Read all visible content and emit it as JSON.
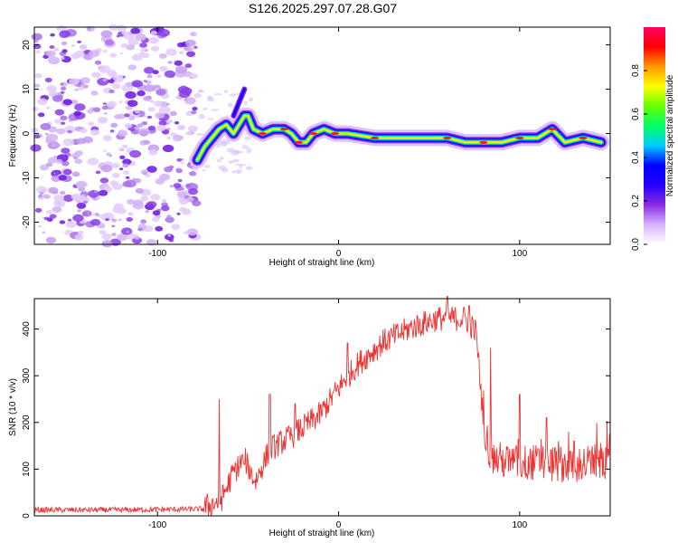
{
  "title": "S126.2025.297.07.28.G07",
  "chart_data": [
    {
      "type": "heatmap",
      "xlabel": "Height of straight line (km)",
      "ylabel": "Frequency (Hz)",
      "xlim": [
        -168,
        150
      ],
      "ylim": [
        -25,
        24
      ],
      "xticks": [
        -100,
        0,
        100
      ],
      "yticks": [
        -20,
        -10,
        0,
        10,
        20
      ],
      "noise_region_x": [
        -168,
        -78
      ],
      "ridge": [
        {
          "x": -78,
          "y": -6
        },
        {
          "x": -74,
          "y": -3
        },
        {
          "x": -70,
          "y": -1
        },
        {
          "x": -66,
          "y": 1
        },
        {
          "x": -62,
          "y": 2
        },
        {
          "x": -58,
          "y": 0
        },
        {
          "x": -55,
          "y": 2
        },
        {
          "x": -52,
          "y": 4
        },
        {
          "x": -50,
          "y": 4
        },
        {
          "x": -47,
          "y": 1
        },
        {
          "x": -42,
          "y": 0
        },
        {
          "x": -36,
          "y": 1
        },
        {
          "x": -30,
          "y": 1
        },
        {
          "x": -26,
          "y": 0
        },
        {
          "x": -22,
          "y": -2
        },
        {
          "x": -18,
          "y": -2
        },
        {
          "x": -14,
          "y": 0
        },
        {
          "x": -8,
          "y": 1
        },
        {
          "x": -2,
          "y": 0
        },
        {
          "x": 5,
          "y": 0
        },
        {
          "x": 20,
          "y": -1
        },
        {
          "x": 40,
          "y": -1
        },
        {
          "x": 60,
          "y": -1
        },
        {
          "x": 70,
          "y": -2
        },
        {
          "x": 80,
          "y": -2
        },
        {
          "x": 90,
          "y": -2
        },
        {
          "x": 100,
          "y": -1
        },
        {
          "x": 110,
          "y": -1
        },
        {
          "x": 118,
          "y": 1
        },
        {
          "x": 125,
          "y": -2
        },
        {
          "x": 135,
          "y": -1
        },
        {
          "x": 145,
          "y": -2
        }
      ],
      "spur": [
        {
          "x": -58,
          "y": 4
        },
        {
          "x": -55,
          "y": 7
        },
        {
          "x": -52,
          "y": 10
        }
      ],
      "colorbar": {
        "label": "Normalized spectral amplitude",
        "range": [
          0,
          1
        ],
        "ticks": [
          0.0,
          0.2,
          0.4,
          0.6,
          0.8
        ],
        "colors": [
          "#ffffff",
          "#d7b2ff",
          "#8a2be2",
          "#2200ff",
          "#0000ff",
          "#00ccff",
          "#00ff66",
          "#66ff00",
          "#ffff00",
          "#ff9900",
          "#ff0000",
          "#ff0066"
        ]
      }
    },
    {
      "type": "line",
      "xlabel": "Height of straight line (km)",
      "ylabel": "SNR (10 * v/v)",
      "xlim": [
        -168,
        150
      ],
      "ylim": [
        0,
        465
      ],
      "xticks": [
        -100,
        0,
        100
      ],
      "yticks": [
        0,
        100,
        200,
        300,
        400
      ],
      "color": "#ee3333",
      "envelope": [
        {
          "x": -168,
          "y": 12
        },
        {
          "x": -120,
          "y": 12
        },
        {
          "x": -75,
          "y": 14
        },
        {
          "x": -65,
          "y": 30
        },
        {
          "x": -58,
          "y": 90
        },
        {
          "x": -52,
          "y": 120
        },
        {
          "x": -46,
          "y": 70
        },
        {
          "x": -38,
          "y": 140
        },
        {
          "x": -25,
          "y": 170
        },
        {
          "x": -10,
          "y": 215
        },
        {
          "x": 0,
          "y": 270
        },
        {
          "x": 10,
          "y": 320
        },
        {
          "x": 25,
          "y": 370
        },
        {
          "x": 40,
          "y": 400
        },
        {
          "x": 55,
          "y": 420
        },
        {
          "x": 70,
          "y": 420
        },
        {
          "x": 76,
          "y": 390
        },
        {
          "x": 80,
          "y": 200
        },
        {
          "x": 84,
          "y": 120
        },
        {
          "x": 95,
          "y": 110
        },
        {
          "x": 110,
          "y": 110
        },
        {
          "x": 130,
          "y": 105
        },
        {
          "x": 150,
          "y": 115
        }
      ],
      "spikes": [
        {
          "x": -66,
          "y": 250
        },
        {
          "x": -52,
          "y": 110
        },
        {
          "x": -38,
          "y": 260
        },
        {
          "x": -24,
          "y": 240
        },
        {
          "x": 5,
          "y": 370
        },
        {
          "x": 60,
          "y": 470
        },
        {
          "x": 72,
          "y": 450
        },
        {
          "x": 84,
          "y": 360
        },
        {
          "x": 100,
          "y": 260
        },
        {
          "x": 115,
          "y": 210
        },
        {
          "x": 130,
          "y": 160
        },
        {
          "x": 150,
          "y": 175
        }
      ]
    }
  ]
}
